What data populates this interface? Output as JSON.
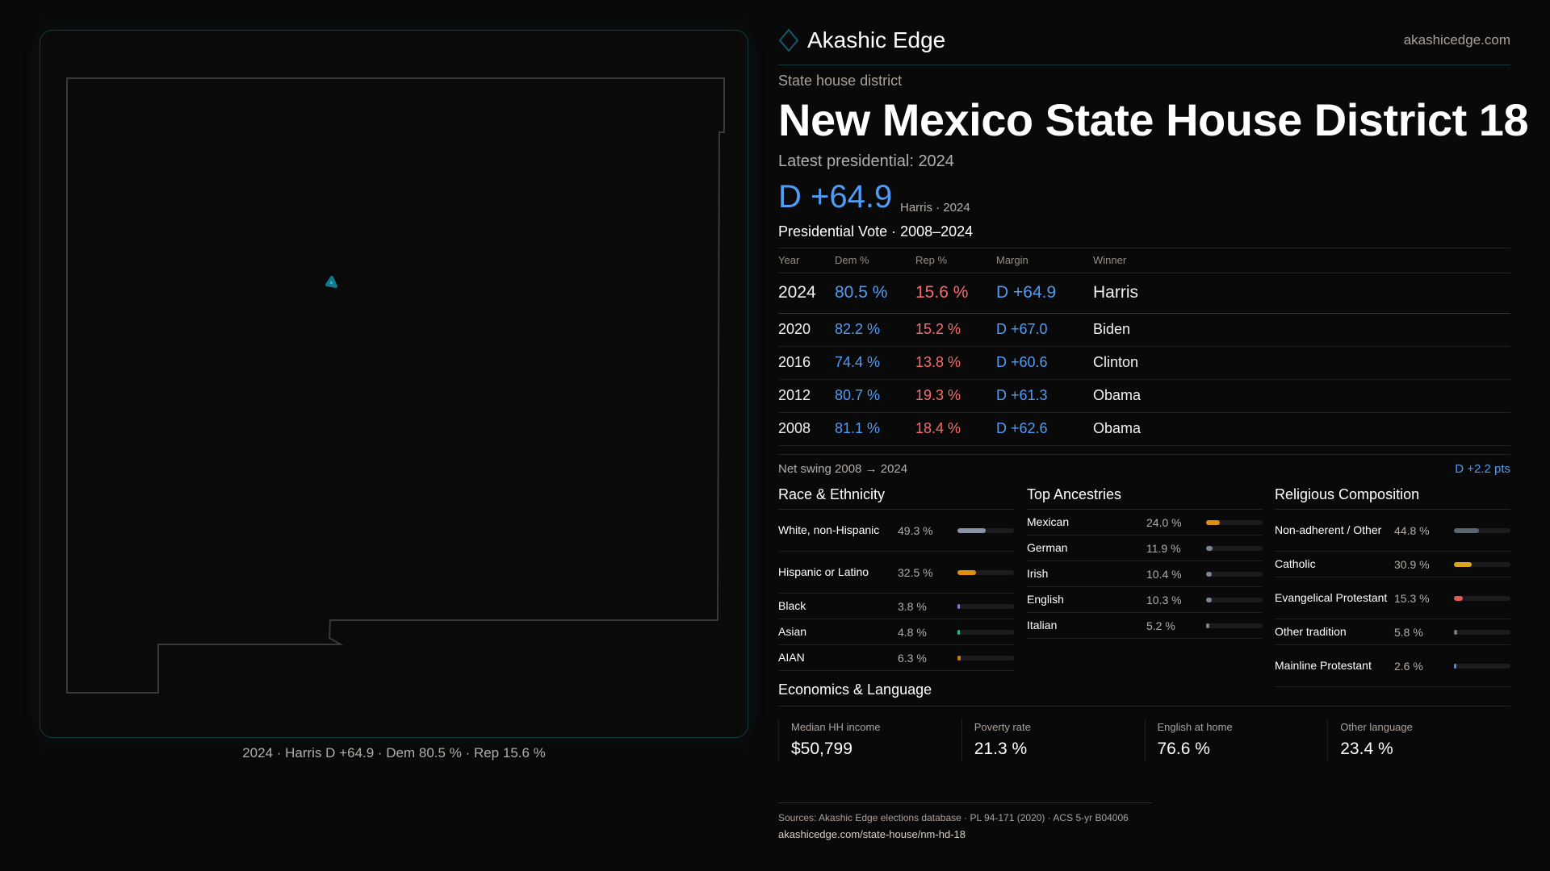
{
  "brand": {
    "name": "Akashic Edge",
    "site": "akashicedge.com",
    "accent": "#0e5a66"
  },
  "map": {
    "caption": "2024 · Harris D +64.9 · Dem 80.5 % · Rep 15.6 %",
    "state": "New Mexico",
    "district_color": "#19c4e0"
  },
  "header": {
    "kicker": "State house district",
    "title": "New Mexico State House District 18",
    "latest": "Latest presidential: 2024",
    "margin": "D +64.9",
    "margin_sub": "Harris · 2024"
  },
  "votes": {
    "title": "Presidential Vote · 2008–2024",
    "columns": [
      "Year",
      "Dem %",
      "Rep %",
      "Margin",
      "Winner"
    ],
    "rows": [
      [
        "2024",
        "80.5 %",
        "15.6 %",
        "D +64.9",
        "Harris"
      ],
      [
        "2020",
        "82.2 %",
        "15.2 %",
        "D +67.0",
        "Biden"
      ],
      [
        "2016",
        "74.4 %",
        "13.8 %",
        "D +60.6",
        "Clinton"
      ],
      [
        "2012",
        "80.7 %",
        "19.3 %",
        "D +61.3",
        "Obama"
      ],
      [
        "2008",
        "81.1 %",
        "18.4 %",
        "D +62.6",
        "Obama"
      ]
    ],
    "swing_label": "Net swing 2008 → 2024",
    "swing_value": "D +2.2 pts"
  },
  "race": {
    "title": "Race & Ethnicity",
    "items": [
      {
        "label": "White, non-Hispanic",
        "value": "49.3 %",
        "pct": 49.3,
        "color": "#8a94a6"
      },
      {
        "label": "Hispanic or Latino",
        "value": "32.5 %",
        "pct": 32.5,
        "color": "#e0900f"
      },
      {
        "label": "Black",
        "value": "3.8 %",
        "pct": 3.8,
        "color": "#8a6fd0"
      },
      {
        "label": "Asian",
        "value": "4.8 %",
        "pct": 4.8,
        "color": "#2fb57f"
      },
      {
        "label": "AIAN",
        "value": "6.3 %",
        "pct": 6.3,
        "color": "#d0780f"
      }
    ]
  },
  "ancestry": {
    "title": "Top Ancestries",
    "items": [
      {
        "label": "Mexican",
        "value": "24.0 %",
        "pct": 24.0,
        "color": "#e0900f"
      },
      {
        "label": "German",
        "value": "11.9 %",
        "pct": 11.9,
        "color": "#7b8494"
      },
      {
        "label": "Irish",
        "value": "10.4 %",
        "pct": 10.4,
        "color": "#7b8494"
      },
      {
        "label": "English",
        "value": "10.3 %",
        "pct": 10.3,
        "color": "#7b8494"
      },
      {
        "label": "Italian",
        "value": "5.2 %",
        "pct": 5.2,
        "color": "#7b8494"
      }
    ]
  },
  "religion": {
    "title": "Religious Composition",
    "items": [
      {
        "label": "Non-adherent / Other",
        "value": "44.8 %",
        "pct": 44.8,
        "color": "#5d6470"
      },
      {
        "label": "Catholic",
        "value": "30.9 %",
        "pct": 30.9,
        "color": "#d9a520"
      },
      {
        "label": "Evangelical Protestant",
        "value": "15.3 %",
        "pct": 15.3,
        "color": "#e05a5a"
      },
      {
        "label": "Other tradition",
        "value": "5.8 %",
        "pct": 5.8,
        "color": "#777a80"
      },
      {
        "label": "Mainline Protestant",
        "value": "2.6 %",
        "pct": 2.6,
        "color": "#4f8ee0"
      }
    ]
  },
  "economics": {
    "title": "Economics & Language",
    "cards": [
      {
        "label": "Median HH income",
        "value": "$50,799"
      },
      {
        "label": "Poverty rate",
        "value": "21.3 %"
      },
      {
        "label": "English at home",
        "value": "76.6 %"
      },
      {
        "label": "Other language",
        "value": "23.4 %"
      }
    ]
  },
  "footer": {
    "sources": "Sources: Akashic Edge elections database · PL 94-171 (2020) · ACS 5-yr B04006",
    "url": "akashicedge.com/state-house/nm-hd-18"
  }
}
